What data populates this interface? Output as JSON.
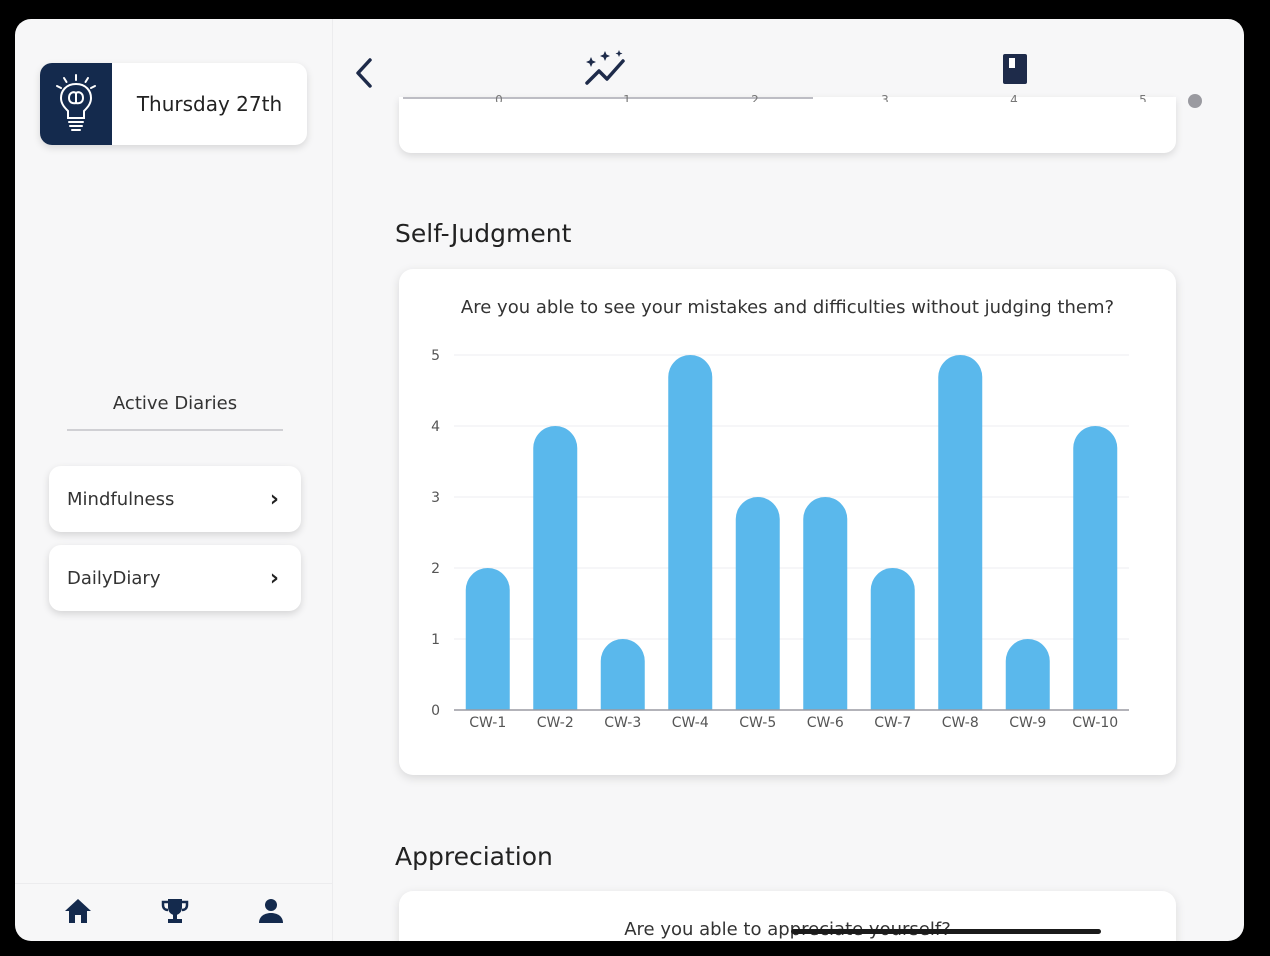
{
  "sidebar": {
    "date": "Thursday 27th",
    "section_label": "Active Diaries",
    "diaries": [
      {
        "label": "Mindfulness"
      },
      {
        "label": "DailyDiary"
      }
    ],
    "bottom_nav": [
      "home-icon",
      "trophy-icon",
      "person-icon"
    ]
  },
  "header": {
    "icons": [
      "back-chevron-icon",
      "sparkle-chart-icon",
      "book-icon"
    ]
  },
  "top_card": {
    "axis_ticks": [
      "0",
      "1",
      "2",
      "3",
      "4",
      "5"
    ]
  },
  "sections": {
    "self_judgment": {
      "title": "Self-Judgment",
      "question": "Are you able to see your mistakes and difficulties without judging them?"
    },
    "appreciation": {
      "title": "Appreciation",
      "question": "Are you able to appreciate yourself?"
    }
  },
  "colors": {
    "bar": "#5ab8ec",
    "logo_bg": "#142a4d",
    "nav_icon": "#142a4d"
  },
  "chart_data": {
    "type": "bar",
    "categories": [
      "CW-1",
      "CW-2",
      "CW-3",
      "CW-4",
      "CW-5",
      "CW-6",
      "CW-7",
      "CW-8",
      "CW-9",
      "CW-10"
    ],
    "values": [
      2,
      4,
      1,
      5,
      3,
      3,
      2,
      5,
      1,
      4
    ],
    "title": "Are you able to see your mistakes and difficulties without judging them?",
    "ylim": [
      0,
      5
    ],
    "yticks": [
      0,
      1,
      2,
      3,
      4,
      5
    ],
    "grid": true
  }
}
